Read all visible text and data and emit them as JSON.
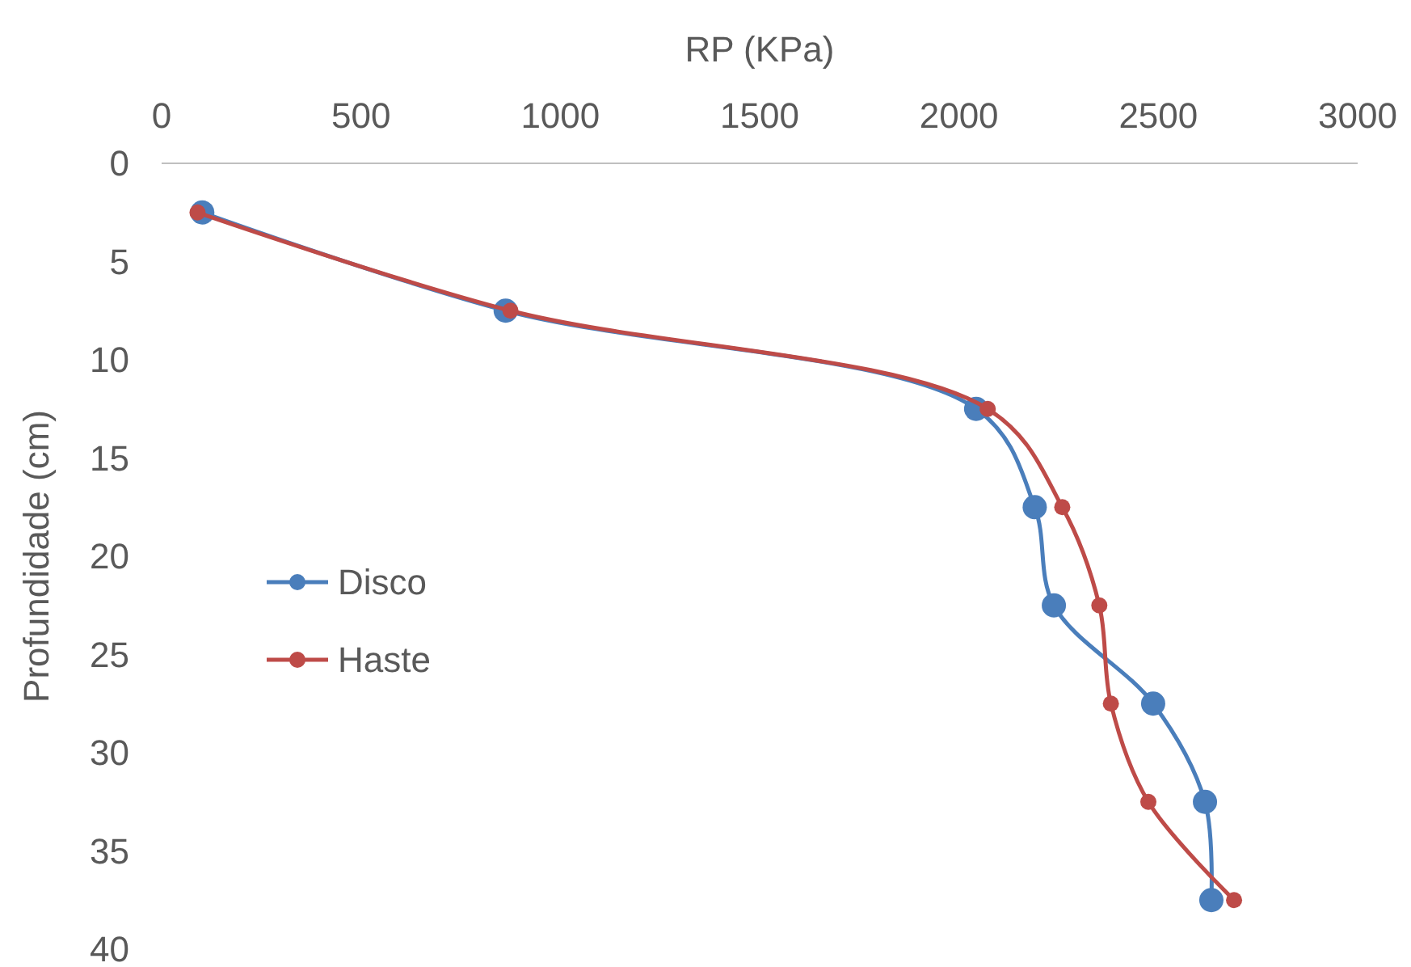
{
  "chart_data": {
    "type": "line",
    "xlabel": "RP (KPa)",
    "ylabel": "Profundidade (cm)",
    "xlim": [
      0,
      3000
    ],
    "xticks": [
      0,
      500,
      1000,
      1500,
      2000,
      2500,
      3000
    ],
    "ylim": [
      40,
      0
    ],
    "yticks": [
      0,
      5,
      10,
      15,
      20,
      25,
      30,
      35,
      40
    ],
    "grid": false,
    "legend": "left",
    "marker": "circle",
    "line_style": "solid",
    "series": [
      {
        "name": "Disco",
        "color": "#4a7ebb",
        "x": [
          102,
          863,
          2043,
          2190,
          2238,
          2487,
          2617,
          2633
        ],
        "values": [
          2.5,
          7.5,
          12.5,
          17.5,
          22.5,
          27.5,
          32.5,
          37.5
        ]
      },
      {
        "name": "Haste",
        "color": "#be4b48",
        "x": [
          90,
          875,
          2072,
          2259,
          2352,
          2381,
          2475,
          2690
        ],
        "values": [
          2.5,
          7.5,
          12.5,
          17.5,
          22.5,
          27.5,
          32.5,
          37.5
        ]
      }
    ]
  }
}
